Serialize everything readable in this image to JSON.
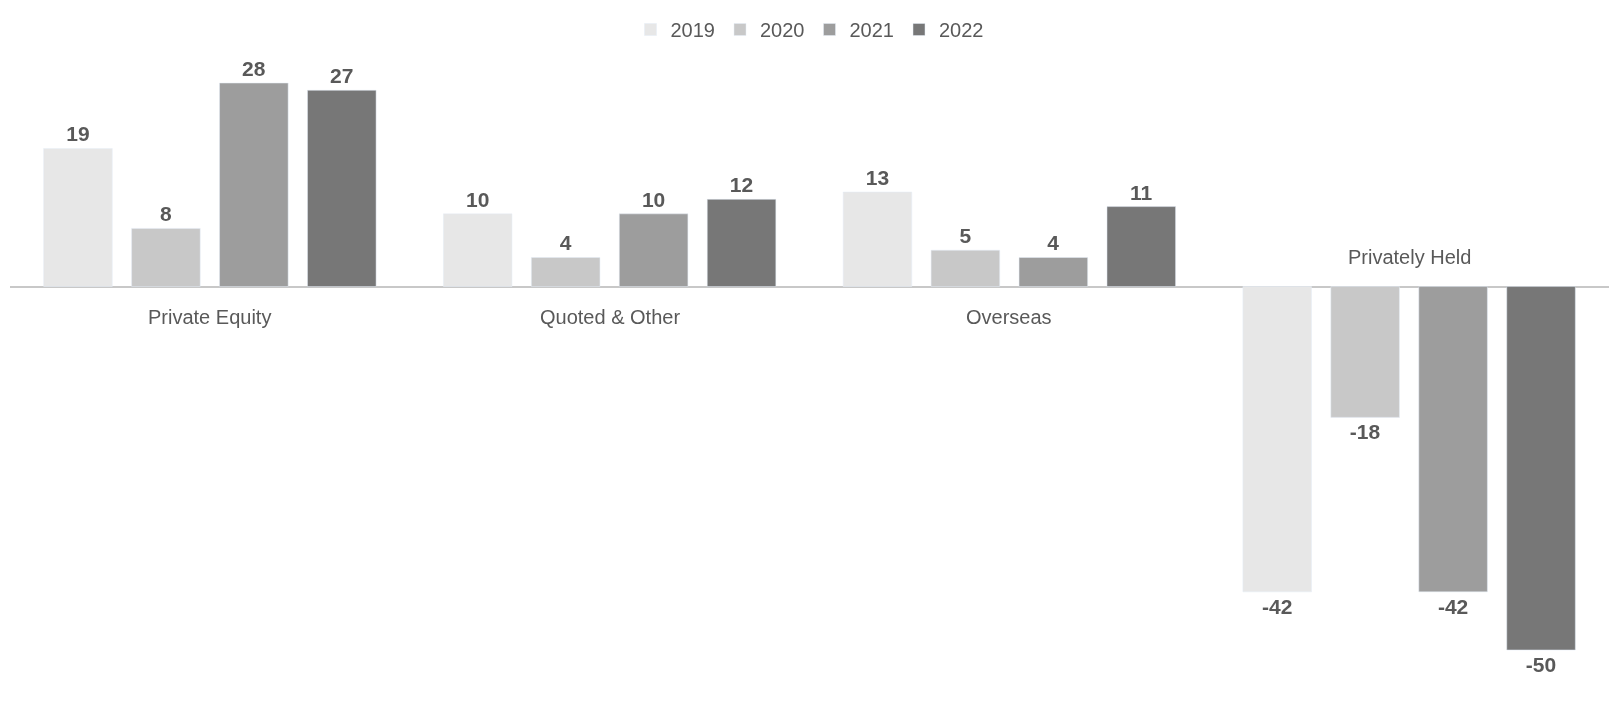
{
  "chart_data": {
    "type": "bar",
    "categories": [
      "Private Equity",
      "Quoted & Other",
      "Overseas",
      "Privately Held"
    ],
    "series": [
      {
        "name": "2019",
        "color": "#e7e7e7",
        "values": [
          19,
          10,
          13,
          -42
        ]
      },
      {
        "name": "2020",
        "color": "#c8c8c8",
        "values": [
          8,
          4,
          5,
          -18
        ]
      },
      {
        "name": "2021",
        "color": "#9d9d9d",
        "values": [
          28,
          10,
          4,
          -42
        ]
      },
      {
        "name": "2022",
        "color": "#777777",
        "values": [
          27,
          12,
          11,
          -50
        ]
      }
    ],
    "data_labels": true,
    "legend": "top"
  }
}
